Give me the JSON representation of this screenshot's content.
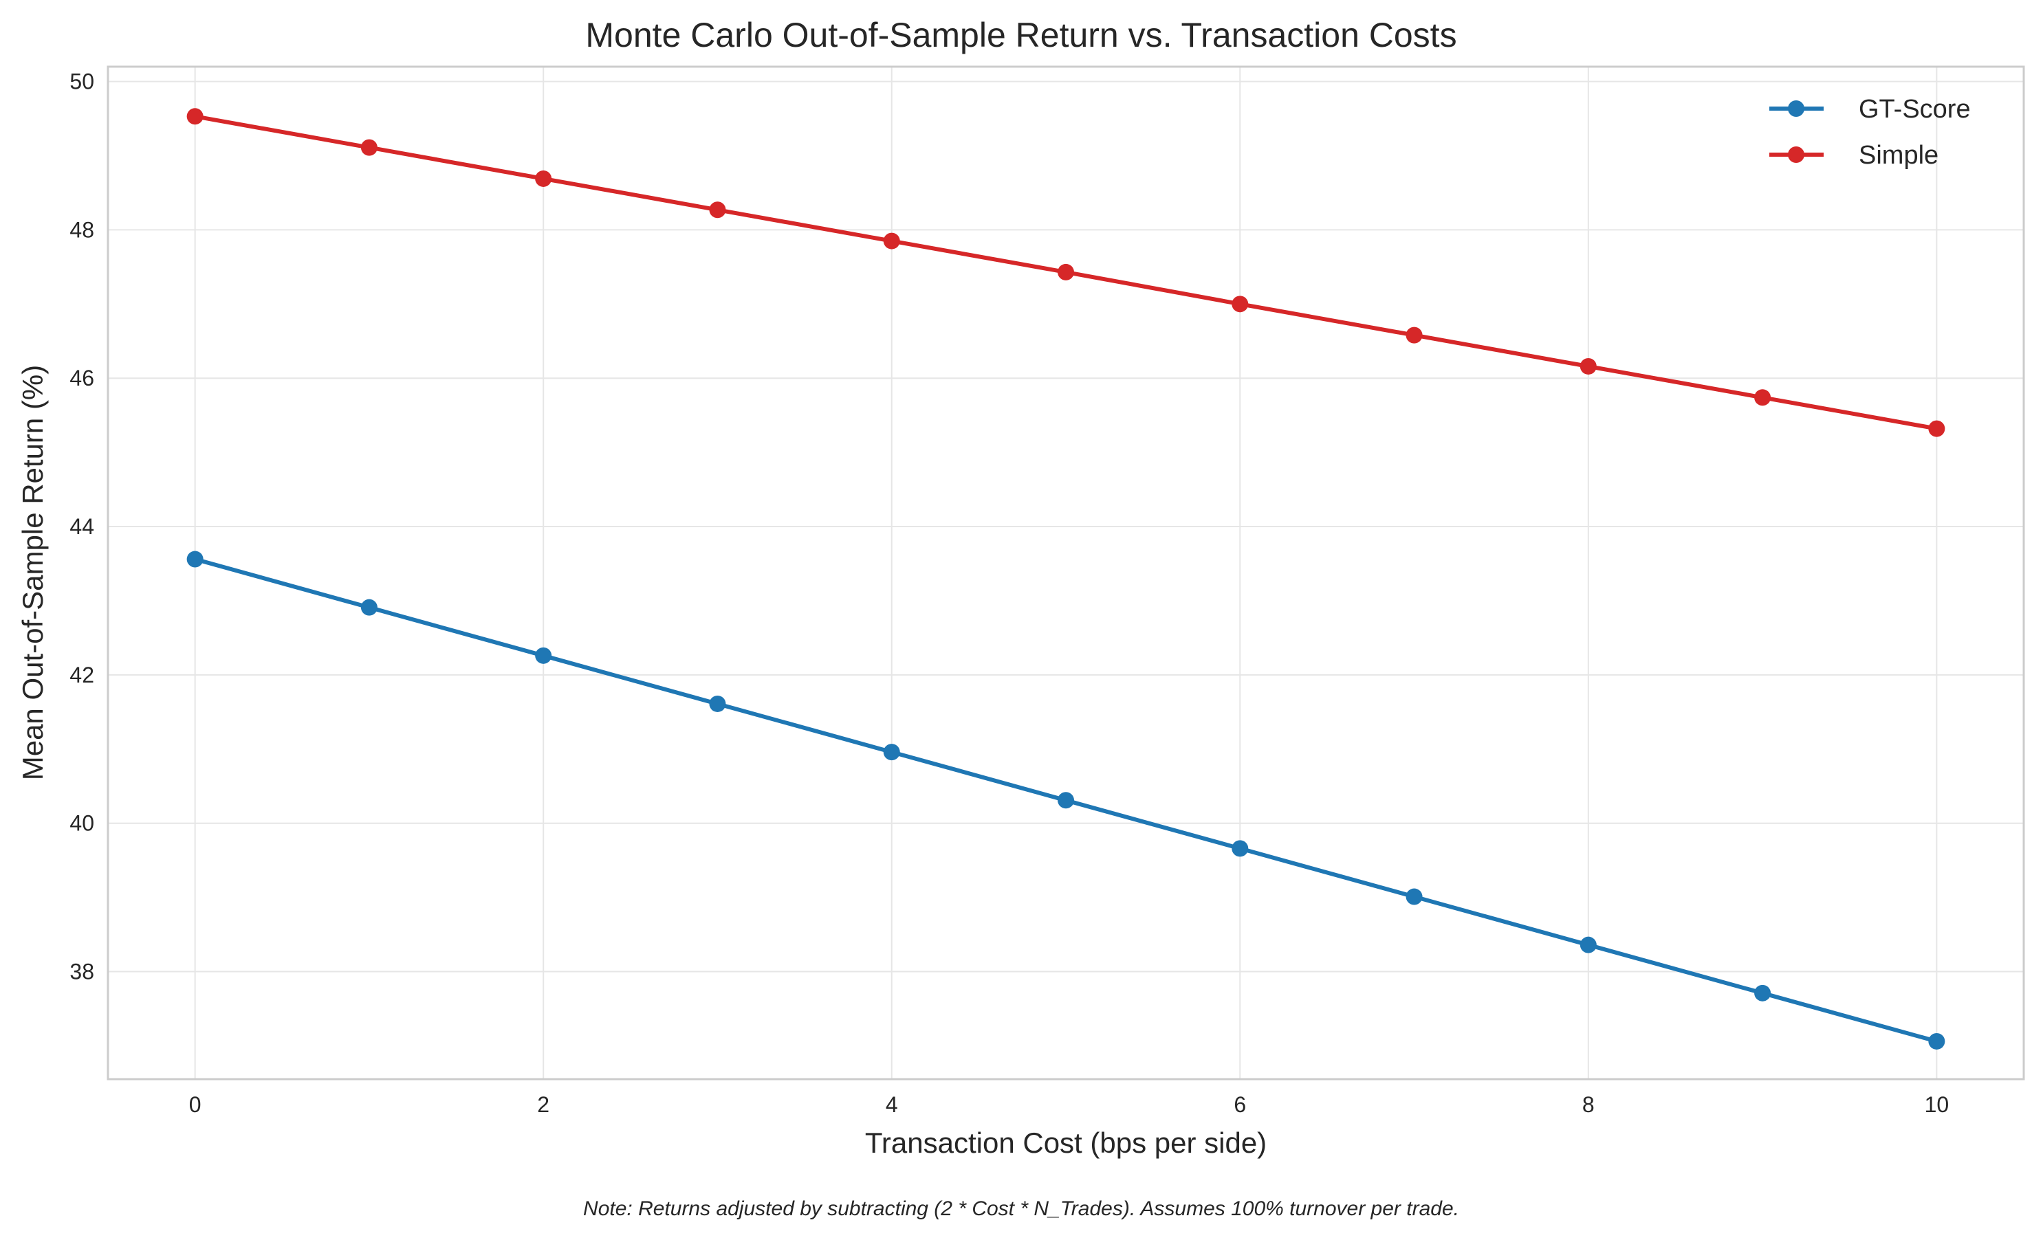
{
  "chart_data": {
    "type": "line",
    "title": "Monte Carlo Out-of-Sample Return vs. Transaction Costs",
    "xlabel": "Transaction Cost (bps per side)",
    "ylabel": "Mean Out-of-Sample Return (%)",
    "note": "Note: Returns adjusted by subtracting (2 * Cost * N_Trades). Assumes 100% turnover per trade.",
    "x": [
      0,
      1,
      2,
      3,
      4,
      5,
      6,
      7,
      8,
      9,
      10
    ],
    "xlim": [
      -0.5,
      10.5
    ],
    "ylim": [
      36.55,
      50.2
    ],
    "xticks": [
      0,
      2,
      4,
      6,
      8,
      10
    ],
    "yticks": [
      38,
      40,
      42,
      44,
      46,
      48,
      50
    ],
    "grid": true,
    "legend_position": "top-right",
    "series": [
      {
        "name": "GT-Score",
        "color": "#1f77b4",
        "values": [
          43.56,
          42.91,
          42.26,
          41.61,
          40.96,
          40.31,
          39.66,
          39.01,
          38.36,
          37.71,
          37.06
        ]
      },
      {
        "name": "Simple",
        "color": "#d62728",
        "values": [
          49.53,
          49.11,
          48.69,
          48.27,
          47.85,
          47.43,
          47.0,
          46.58,
          46.16,
          45.74,
          45.32
        ]
      }
    ]
  }
}
